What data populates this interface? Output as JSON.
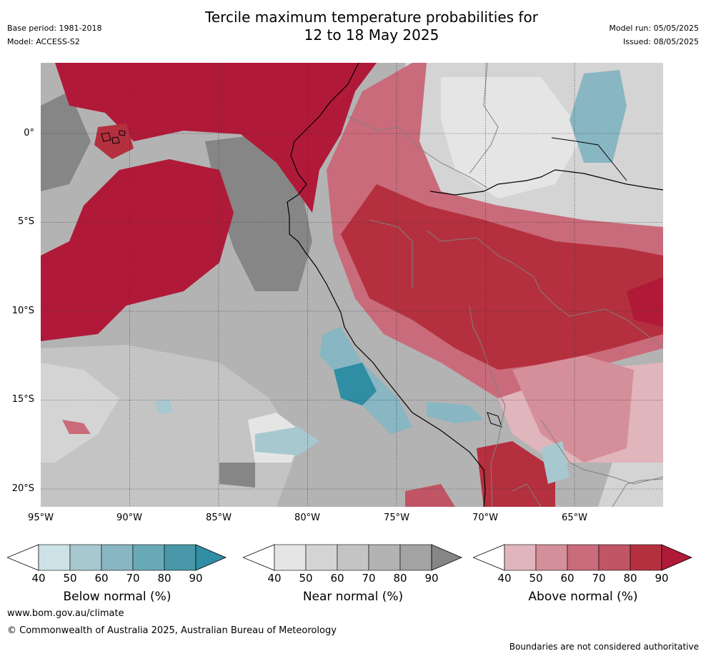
{
  "header": {
    "title_line1": "Tercile maximum temperature probabilities for",
    "title_line2": "12 to 18 May 2025",
    "base_period": "Base period: 1981-2018",
    "model": "Model: ACCESS-S2",
    "model_run": "Model run: 05/05/2025",
    "issued": "Issued: 08/05/2025"
  },
  "map": {
    "lat_labels": [
      "0°",
      "5°S",
      "10°S",
      "15°S",
      "20°S"
    ],
    "lon_labels": [
      "95°W",
      "90°W",
      "85°W",
      "80°W",
      "75°W",
      "70°W",
      "65°W"
    ],
    "colors": {
      "below": [
        "#cde2e6",
        "#a7c8cf",
        "#88b6c2",
        "#69a9b6",
        "#4898a9",
        "#2f8ea4"
      ],
      "near": [
        "#e5e5e5",
        "#d4d4d4",
        "#c4c4c4",
        "#b3b3b3",
        "#a3a3a3",
        "#868686"
      ],
      "above": [
        "#e0b5bc",
        "#d48f9a",
        "#c96b7a",
        "#bf5565",
        "#b5303f",
        "#b01a38"
      ],
      "coast": "#000000",
      "border": "#808080"
    }
  },
  "colorbars": {
    "below": {
      "label": "Below normal (%)",
      "ticks": [
        "40",
        "50",
        "60",
        "70",
        "80",
        "90"
      ]
    },
    "near": {
      "label": "Near normal (%)",
      "ticks": [
        "40",
        "50",
        "60",
        "70",
        "80",
        "90"
      ]
    },
    "above": {
      "label": "Above normal (%)",
      "ticks": [
        "40",
        "50",
        "60",
        "70",
        "80",
        "90"
      ]
    }
  },
  "footer": {
    "url": "www.bom.gov.au/climate",
    "copyright": "© Commonwealth of Australia 2025, Australian Bureau of Meteorology",
    "note": "Boundaries are not considered authoritative"
  }
}
